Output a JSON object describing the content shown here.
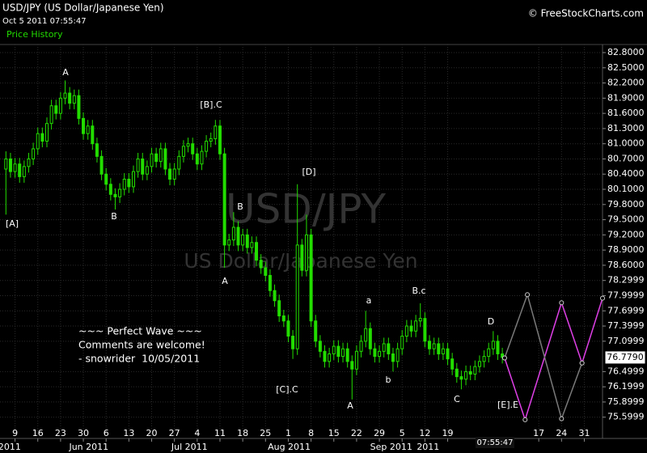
{
  "chart_data": {
    "type": "candlestick",
    "title": "USD/JPY (US Dollar/Japanese Yen)",
    "subtitle": "Oct 5 2011 07:55:47",
    "panel_label": "Price History",
    "copyright": "© FreeStockCharts.com",
    "watermark": "USD/JPY",
    "watermark_subtitle": "US Dollar/Japanese Yen",
    "comment": [
      "~~~ Perfect Wave ~~~",
      "Comments are welcome!",
      "- snowrider  10/05/2011"
    ],
    "time_label": "07:55:47",
    "color": "#22dd00",
    "grid": true,
    "xlim": [
      -1.3,
      131
    ],
    "ylim": [
      75.18,
      82.96
    ],
    "ohlc": [
      [
        80.5,
        80.85,
        79.6,
        80.7
      ],
      [
        80.7,
        80.82,
        80.33,
        80.45
      ],
      [
        80.45,
        80.72,
        80.33,
        80.6
      ],
      [
        80.6,
        80.72,
        80.23,
        80.35
      ],
      [
        80.35,
        80.67,
        80.23,
        80.55
      ],
      [
        80.55,
        80.82,
        80.43,
        80.7
      ],
      [
        80.7,
        81.02,
        80.58,
        80.9
      ],
      [
        80.9,
        81.32,
        80.78,
        81.2
      ],
      [
        81.2,
        81.32,
        80.93,
        81.05
      ],
      [
        81.05,
        81.52,
        80.93,
        81.4
      ],
      [
        81.4,
        81.87,
        81.28,
        81.75
      ],
      [
        81.75,
        81.87,
        81.48,
        81.6
      ],
      [
        81.6,
        82.02,
        81.48,
        81.9
      ],
      [
        81.9,
        82.25,
        81.78,
        82.0
      ],
      [
        82.0,
        82.12,
        81.68,
        81.8
      ],
      [
        81.8,
        82.07,
        81.68,
        81.95
      ],
      [
        81.95,
        82.07,
        81.38,
        81.5
      ],
      [
        81.5,
        81.62,
        81.08,
        81.2
      ],
      [
        81.2,
        81.47,
        81.08,
        81.35
      ],
      [
        81.35,
        81.47,
        80.88,
        81.0
      ],
      [
        81.0,
        81.12,
        80.63,
        80.75
      ],
      [
        80.75,
        80.87,
        80.28,
        80.4
      ],
      [
        80.4,
        80.52,
        80.08,
        80.2
      ],
      [
        80.2,
        80.32,
        79.88,
        80.0
      ],
      [
        80.0,
        80.12,
        79.7,
        79.95
      ],
      [
        79.95,
        80.22,
        79.83,
        80.1
      ],
      [
        80.1,
        80.42,
        79.98,
        80.3
      ],
      [
        80.3,
        80.42,
        80.03,
        80.15
      ],
      [
        80.15,
        80.57,
        80.03,
        80.45
      ],
      [
        80.45,
        80.82,
        80.33,
        80.7
      ],
      [
        80.7,
        80.82,
        80.28,
        80.4
      ],
      [
        80.4,
        80.67,
        80.28,
        80.55
      ],
      [
        80.55,
        80.92,
        80.43,
        80.8
      ],
      [
        80.8,
        80.92,
        80.53,
        80.65
      ],
      [
        80.65,
        81.02,
        80.53,
        80.9
      ],
      [
        80.9,
        81.02,
        80.38,
        80.5
      ],
      [
        80.5,
        80.62,
        80.18,
        80.3
      ],
      [
        80.3,
        80.62,
        80.18,
        80.5
      ],
      [
        80.5,
        80.87,
        80.38,
        80.75
      ],
      [
        80.75,
        81.07,
        80.63,
        80.95
      ],
      [
        80.95,
        81.12,
        80.83,
        81.0
      ],
      [
        81.0,
        81.12,
        80.68,
        80.8
      ],
      [
        80.8,
        80.92,
        80.48,
        80.6
      ],
      [
        80.6,
        80.97,
        80.48,
        80.85
      ],
      [
        80.85,
        81.17,
        80.73,
        81.05
      ],
      [
        81.05,
        81.22,
        80.93,
        81.1
      ],
      [
        81.1,
        81.47,
        80.98,
        81.35
      ],
      [
        81.35,
        81.47,
        80.68,
        80.8
      ],
      [
        80.8,
        80.92,
        78.55,
        79.0
      ],
      [
        79.0,
        79.22,
        78.88,
        79.1
      ],
      [
        79.1,
        79.65,
        78.98,
        79.35
      ],
      [
        79.35,
        79.47,
        78.88,
        79.0
      ],
      [
        79.0,
        79.32,
        78.88,
        79.2
      ],
      [
        79.2,
        79.32,
        78.83,
        78.95
      ],
      [
        78.95,
        79.17,
        78.83,
        79.05
      ],
      [
        79.05,
        79.17,
        78.58,
        78.7
      ],
      [
        78.7,
        78.82,
        78.43,
        78.55
      ],
      [
        78.55,
        78.67,
        78.28,
        78.4
      ],
      [
        78.4,
        78.52,
        77.98,
        78.1
      ],
      [
        78.1,
        78.22,
        77.78,
        77.9
      ],
      [
        77.9,
        78.02,
        77.48,
        77.6
      ],
      [
        77.6,
        77.72,
        77.38,
        77.5
      ],
      [
        77.5,
        77.62,
        77.08,
        77.2
      ],
      [
        77.2,
        77.32,
        76.75,
        76.95
      ],
      [
        76.95,
        80.2,
        76.83,
        79.0
      ],
      [
        79.0,
        79.12,
        78.38,
        78.5
      ],
      [
        78.5,
        79.6,
        78.38,
        79.2
      ],
      [
        79.2,
        79.32,
        77.38,
        77.5
      ],
      [
        77.5,
        77.62,
        76.98,
        77.1
      ],
      [
        77.1,
        77.22,
        76.78,
        76.9
      ],
      [
        76.9,
        77.02,
        76.58,
        76.7
      ],
      [
        76.7,
        76.97,
        76.58,
        76.85
      ],
      [
        76.85,
        77.12,
        76.73,
        77.0
      ],
      [
        77.0,
        77.12,
        76.68,
        76.8
      ],
      [
        76.8,
        77.07,
        76.68,
        76.95
      ],
      [
        76.95,
        77.07,
        76.58,
        76.7
      ],
      [
        76.7,
        76.82,
        75.95,
        76.55
      ],
      [
        76.55,
        77.02,
        76.43,
        76.9
      ],
      [
        76.9,
        77.22,
        76.78,
        77.1
      ],
      [
        77.1,
        77.7,
        76.98,
        77.35
      ],
      [
        77.35,
        77.47,
        76.83,
        76.95
      ],
      [
        76.95,
        77.07,
        76.68,
        76.8
      ],
      [
        76.8,
        77.02,
        76.68,
        76.9
      ],
      [
        76.9,
        77.17,
        76.78,
        77.05
      ],
      [
        77.05,
        77.17,
        76.73,
        76.85
      ],
      [
        76.85,
        76.97,
        76.5,
        76.7
      ],
      [
        76.7,
        77.07,
        76.58,
        76.95
      ],
      [
        76.95,
        77.32,
        76.83,
        77.2
      ],
      [
        77.2,
        77.52,
        77.08,
        77.4
      ],
      [
        77.4,
        77.52,
        77.18,
        77.3
      ],
      [
        77.3,
        77.62,
        77.18,
        77.5
      ],
      [
        77.5,
        77.85,
        77.38,
        77.55
      ],
      [
        77.55,
        77.67,
        76.98,
        77.1
      ],
      [
        77.1,
        77.22,
        76.83,
        76.95
      ],
      [
        76.95,
        77.17,
        76.83,
        77.05
      ],
      [
        77.05,
        77.17,
        76.73,
        76.85
      ],
      [
        76.85,
        77.07,
        76.73,
        76.95
      ],
      [
        76.95,
        77.07,
        76.63,
        76.75
      ],
      [
        76.75,
        76.87,
        76.43,
        76.55
      ],
      [
        76.55,
        76.67,
        76.28,
        76.4
      ],
      [
        76.4,
        76.52,
        76.15,
        76.35
      ],
      [
        76.35,
        76.62,
        76.23,
        76.5
      ],
      [
        76.5,
        76.62,
        76.33,
        76.45
      ],
      [
        76.45,
        76.72,
        76.33,
        76.6
      ],
      [
        76.6,
        76.82,
        76.48,
        76.7
      ],
      [
        76.7,
        76.92,
        76.58,
        76.8
      ],
      [
        76.8,
        77.07,
        76.68,
        76.95
      ],
      [
        76.95,
        77.3,
        76.83,
        77.1
      ],
      [
        77.1,
        77.22,
        76.73,
        76.85
      ],
      [
        76.85,
        76.97,
        76.66,
        76.78
      ]
    ],
    "xticks": [
      {
        "value": 2,
        "label": "9"
      },
      {
        "value": 7,
        "label": "16"
      },
      {
        "value": 12,
        "label": "23"
      },
      {
        "value": 17,
        "label": "30"
      },
      {
        "value": 22,
        "label": "6"
      },
      {
        "value": 27,
        "label": "13"
      },
      {
        "value": 32,
        "label": "20"
      },
      {
        "value": 37,
        "label": "27"
      },
      {
        "value": 42,
        "label": "4"
      },
      {
        "value": 47,
        "label": "11"
      },
      {
        "value": 52,
        "label": "18"
      },
      {
        "value": 57,
        "label": "25"
      },
      {
        "value": 62,
        "label": "1"
      },
      {
        "value": 67,
        "label": "8"
      },
      {
        "value": 72,
        "label": "15"
      },
      {
        "value": 77,
        "label": "22"
      },
      {
        "value": 82,
        "label": "29"
      },
      {
        "value": 87,
        "label": "5"
      },
      {
        "value": 92,
        "label": "12"
      },
      {
        "value": 97,
        "label": "19"
      },
      {
        "value": 117,
        "label": "17"
      },
      {
        "value": 122,
        "label": "24"
      },
      {
        "value": 127,
        "label": "31"
      }
    ],
    "month_labels": [
      {
        "value": 0.8,
        "label": "2011"
      },
      {
        "value": 18.2,
        "label": "Jun 2011"
      },
      {
        "value": 40.3,
        "label": "Jul 2011"
      },
      {
        "value": 62.2,
        "label": "Aug 2011"
      },
      {
        "value": 84.6,
        "label": "Sep 2011"
      },
      {
        "value": 92.7,
        "label": "2011"
      }
    ],
    "yticks": [
      {
        "value": 82.8,
        "label": "82.8000"
      },
      {
        "value": 82.5,
        "label": "82.5000"
      },
      {
        "value": 82.2,
        "label": "82.2000"
      },
      {
        "value": 81.9,
        "label": "81.9000"
      },
      {
        "value": 81.6,
        "label": "81.6000"
      },
      {
        "value": 81.3,
        "label": "81.3000"
      },
      {
        "value": 81.0,
        "label": "81.0000"
      },
      {
        "value": 80.7,
        "label": "80.7000"
      },
      {
        "value": 80.4,
        "label": "80.4000"
      },
      {
        "value": 80.1,
        "label": "80.1000"
      },
      {
        "value": 79.8,
        "label": "79.8000"
      },
      {
        "value": 79.5,
        "label": "79.5000"
      },
      {
        "value": 79.2,
        "label": "79.2000"
      },
      {
        "value": 78.9,
        "label": "78.9000"
      },
      {
        "value": 78.6,
        "label": "78.6000"
      },
      {
        "value": 78.2999,
        "label": "78.2999"
      },
      {
        "value": 77.9999,
        "label": "77.9999"
      },
      {
        "value": 77.6999,
        "label": "77.6999"
      },
      {
        "value": 77.3999,
        "label": "77.3999"
      },
      {
        "value": 77.0999,
        "label": "77.0999"
      },
      {
        "value": 76.4999,
        "label": "76.4999"
      },
      {
        "value": 76.1999,
        "label": "76.1999"
      },
      {
        "value": 75.8999,
        "label": "75.8999"
      },
      {
        "value": 75.5999,
        "label": "75.5999"
      }
    ],
    "last_price": {
      "value": 76.779,
      "label": "76.7790"
    },
    "projections": [
      {
        "color": "#e040e8",
        "x": [
          109.5,
          114,
          122,
          126.5,
          131
        ],
        "y": [
          76.77,
          75.55,
          77.86,
          76.67,
          77.95
        ]
      },
      {
        "color": "#7a7a7a",
        "x": [
          109.5,
          114.5,
          122,
          126.5
        ],
        "y": [
          76.77,
          78.02,
          75.57,
          76.67
        ]
      }
    ],
    "annotations": [
      "[A]",
      "A",
      "B",
      "[B].C",
      "B",
      "A",
      "[D]",
      "[C].C",
      "a",
      "A",
      "b",
      "B.c",
      "C",
      "D",
      "[E].E"
    ]
  }
}
